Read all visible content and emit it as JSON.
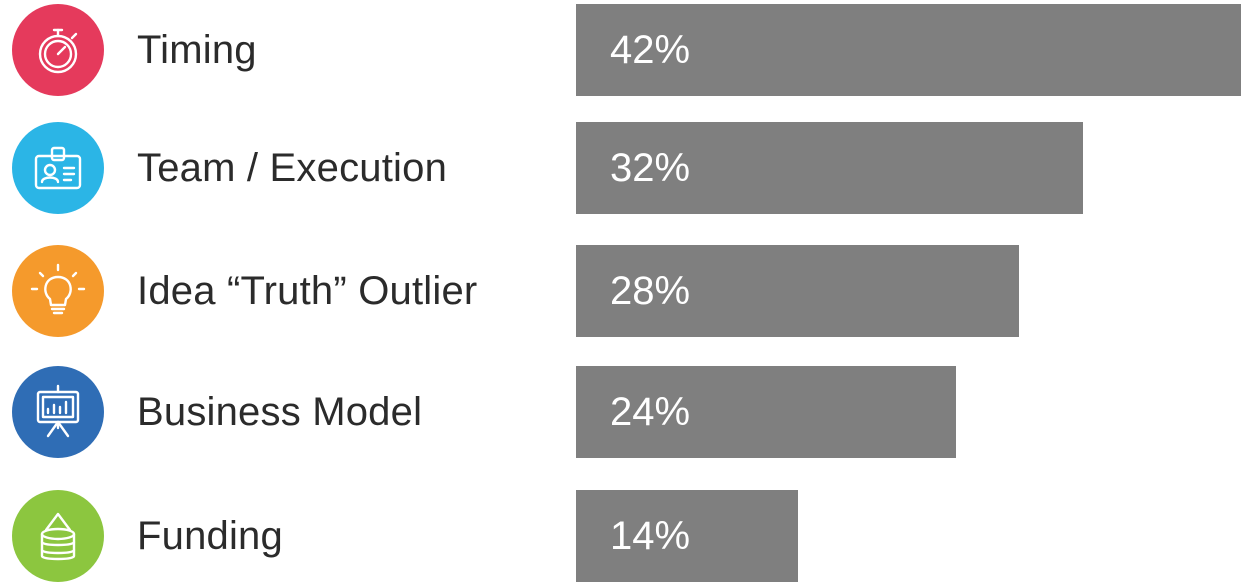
{
  "chart_data": {
    "type": "bar",
    "orientation": "horizontal",
    "title": "",
    "xlabel": "",
    "ylabel": "",
    "xlim": [
      0,
      42
    ],
    "grid": false,
    "bar_color": "#7f7f7f",
    "categories": [
      "Timing",
      "Team / Execution",
      "Idea “Truth” Outlier",
      "Business Model",
      "Funding"
    ],
    "values": [
      42,
      32,
      28,
      24,
      14
    ],
    "value_labels": [
      "42%",
      "32%",
      "28%",
      "24%",
      "14%"
    ],
    "category_icons": [
      {
        "icon": "stopwatch-icon",
        "color": "#e53a5c"
      },
      {
        "icon": "id-badge-icon",
        "color": "#2bb5e6"
      },
      {
        "icon": "lightbulb-icon",
        "color": "#f59a2c"
      },
      {
        "icon": "presentation-chart-icon",
        "color": "#2f6db5"
      },
      {
        "icon": "money-stack-icon",
        "color": "#8cc63f"
      }
    ]
  }
}
